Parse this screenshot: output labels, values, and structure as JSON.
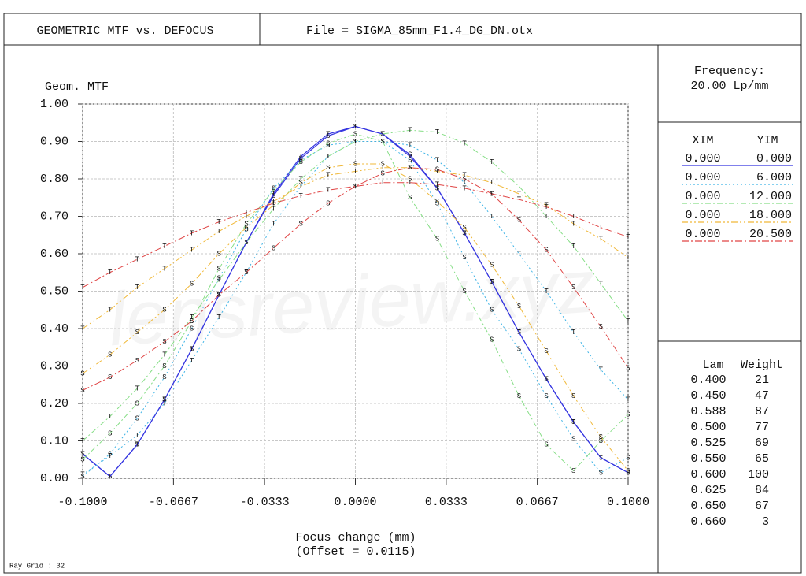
{
  "header": {
    "title": "GEOMETRIC MTF vs. DEFOCUS",
    "file": "File = SIGMA_85mm_F1.4_DG_DN.otx"
  },
  "chart_data": {
    "type": "line",
    "ylabel": "Geom. MTF",
    "xlabel": "Focus change (mm)",
    "xlabel2": "(Offset = 0.0115)",
    "watermark": "lensreview.xyz",
    "x": [
      -0.1,
      -0.09,
      -0.08,
      -0.07,
      -0.06,
      -0.05,
      -0.04,
      -0.03,
      -0.02,
      -0.01,
      0,
      0.01,
      0.02,
      0.03,
      0.04,
      0.05,
      0.06,
      0.07,
      0.08,
      0.09,
      0.1
    ],
    "xlim": [
      -0.1,
      0.1
    ],
    "xticks": [
      {
        "value": -0.1,
        "label": "-0.1000"
      },
      -0.0667,
      -0.0333,
      {
        "value": 0,
        "label": "0.0000"
      },
      0.0333,
      0.0667,
      {
        "value": 0.1,
        "label": "0.1000"
      }
    ],
    "ylim": [
      0,
      1
    ],
    "yticks": [
      {
        "value": 0,
        "label": "0.00"
      },
      {
        "value": 0.1,
        "label": "0.10"
      },
      {
        "value": 0.2,
        "label": "0.20"
      },
      {
        "value": 0.3,
        "label": "0.30"
      },
      {
        "value": 0.4,
        "label": "0.40"
      },
      {
        "value": 0.5,
        "label": "0.50"
      },
      {
        "value": 0.6,
        "label": "0.60"
      },
      {
        "value": 0.7,
        "label": "0.70"
      },
      {
        "value": 0.8,
        "label": "0.80"
      },
      {
        "value": 0.9,
        "label": "0.90"
      },
      {
        "value": 1,
        "label": "1.00"
      }
    ],
    "grid": true,
    "series": [
      {
        "name": "S",
        "color": "#3535e0",
        "values": [
          0.065,
          0.005,
          0.09,
          0.21,
          0.345,
          0.49,
          0.63,
          0.755,
          0.855,
          0.915,
          0.94,
          0.92,
          0.865,
          0.775,
          0.655,
          0.525,
          0.39,
          0.265,
          0.15,
          0.055,
          0.015
        ]
      },
      {
        "name": "T",
        "color": "#3535e0",
        "values": [
          0.065,
          0.005,
          0.09,
          0.21,
          0.345,
          0.49,
          0.63,
          0.76,
          0.86,
          0.92,
          0.94,
          0.92,
          0.86,
          0.775,
          0.655,
          0.525,
          0.39,
          0.265,
          0.15,
          0.055,
          0.015
        ]
      },
      {
        "name": "S",
        "color": "#3fb4e6",
        "values": [
          0.005,
          0.065,
          0.16,
          0.27,
          0.4,
          0.535,
          0.665,
          0.775,
          0.85,
          0.89,
          0.9,
          0.9,
          0.85,
          0.735,
          0.59,
          0.45,
          0.345,
          0.22,
          0.105,
          0.015,
          0.055
        ]
      },
      {
        "name": "T",
        "color": "#3fb4e6",
        "values": [
          0.01,
          0.06,
          0.115,
          0.2,
          0.315,
          0.43,
          0.55,
          0.68,
          0.78,
          0.86,
          0.9,
          0.9,
          0.89,
          0.85,
          0.79,
          0.7,
          0.6,
          0.5,
          0.39,
          0.29,
          0.21
        ]
      },
      {
        "name": "S",
        "color": "#86de86",
        "values": [
          0.05,
          0.12,
          0.2,
          0.3,
          0.42,
          0.56,
          0.68,
          0.77,
          0.845,
          0.895,
          0.92,
          0.9,
          0.75,
          0.64,
          0.5,
          0.37,
          0.22,
          0.09,
          0.02,
          0.1,
          0.17
        ]
      },
      {
        "name": "T",
        "color": "#86de86",
        "values": [
          0.1,
          0.165,
          0.24,
          0.33,
          0.43,
          0.53,
          0.63,
          0.72,
          0.8,
          0.86,
          0.9,
          0.92,
          0.93,
          0.925,
          0.895,
          0.845,
          0.78,
          0.7,
          0.62,
          0.52,
          0.42
        ]
      },
      {
        "name": "S",
        "color": "#f0b838",
        "values": [
          0.28,
          0.33,
          0.39,
          0.45,
          0.52,
          0.6,
          0.67,
          0.73,
          0.79,
          0.83,
          0.84,
          0.84,
          0.8,
          0.74,
          0.67,
          0.57,
          0.46,
          0.34,
          0.22,
          0.11,
          0.02
        ]
      },
      {
        "name": "T",
        "color": "#f0b838",
        "values": [
          0.4,
          0.45,
          0.51,
          0.56,
          0.61,
          0.66,
          0.7,
          0.74,
          0.78,
          0.81,
          0.82,
          0.83,
          0.83,
          0.82,
          0.81,
          0.79,
          0.76,
          0.73,
          0.68,
          0.64,
          0.59
        ]
      },
      {
        "name": "S",
        "color": "#e04545",
        "values": [
          0.235,
          0.27,
          0.315,
          0.365,
          0.42,
          0.49,
          0.55,
          0.615,
          0.68,
          0.735,
          0.78,
          0.815,
          0.83,
          0.825,
          0.8,
          0.76,
          0.69,
          0.61,
          0.51,
          0.405,
          0.295
        ]
      },
      {
        "name": "T",
        "color": "#e04545",
        "values": [
          0.51,
          0.55,
          0.585,
          0.62,
          0.655,
          0.685,
          0.71,
          0.735,
          0.755,
          0.77,
          0.78,
          0.79,
          0.79,
          0.785,
          0.775,
          0.76,
          0.745,
          0.725,
          0.7,
          0.67,
          0.645
        ]
      }
    ]
  },
  "side": {
    "frequency_label": "Frequency:",
    "frequency": "20.00  Lp/mm",
    "fields_header": [
      "XIM",
      "YIM"
    ],
    "fields": [
      [
        "0.000",
        "0.000"
      ],
      [
        "0.000",
        "6.000"
      ],
      [
        "0.000",
        "12.000"
      ],
      [
        "0.000",
        "18.000"
      ],
      [
        "0.000",
        "20.500"
      ]
    ],
    "wavelength_header": [
      "Lam",
      "Weight"
    ],
    "wavelengths": [
      [
        "0.400",
        "21"
      ],
      [
        "0.450",
        "47"
      ],
      [
        "0.588",
        "87"
      ],
      [
        "0.500",
        "77"
      ],
      [
        "0.525",
        "69"
      ],
      [
        "0.550",
        "65"
      ],
      [
        "0.600",
        "100"
      ],
      [
        "0.625",
        "84"
      ],
      [
        "0.650",
        "67"
      ],
      [
        "0.660",
        "3"
      ]
    ]
  },
  "footer": "Ray Grid : 32"
}
